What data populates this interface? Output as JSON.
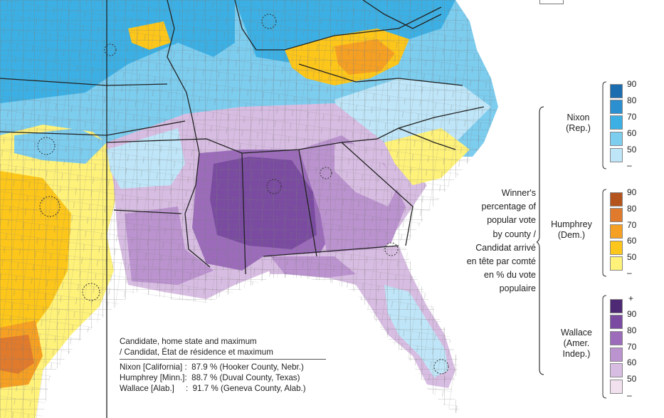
{
  "legend": {
    "winner_title": [
      "Winner's",
      "percentage of",
      "popular vote",
      "by county /",
      "Candidat arrivé",
      "en tête par comté",
      "en % du vote",
      "populaire"
    ],
    "groups": [
      {
        "name": "nixon",
        "label": [
          "Nixon",
          "(Rep.)"
        ],
        "ticks": [
          "90",
          "80",
          "70",
          "60",
          "50",
          "–"
        ],
        "colors": [
          "#1b6db0",
          "#2b8fd0",
          "#3cb0e4",
          "#7dcdef",
          "#bfe6f8"
        ]
      },
      {
        "name": "humphrey",
        "label": [
          "Humphrey",
          "(Dem.)"
        ],
        "ticks": [
          "90",
          "80",
          "70",
          "60",
          "50",
          "–"
        ],
        "colors": [
          "#b4531c",
          "#e07a2c",
          "#f5a023",
          "#fcc61b",
          "#fff27a"
        ]
      },
      {
        "name": "wallace",
        "label": [
          "Wallace",
          "(Amer.",
          "Indep.)"
        ],
        "ticks": [
          "+",
          "90",
          "80",
          "70",
          "60",
          "50",
          "–"
        ],
        "colors": [
          "#4e2a74",
          "#7a4ba0",
          "#9c6cbb",
          "#bb93cf",
          "#d8bde2",
          "#f1e1ef"
        ]
      }
    ]
  },
  "source": {
    "heading": [
      "Candidate, home state and maximum",
      "/ Candidat, État de résidence et maximum"
    ],
    "rows": [
      "Nixon [California] :  87.9 % (Hooker County, Nebr.)",
      "Humphrey [Minn.]:  88.7 % (Duval County, Texas)",
      "Wallace [Alab.]     :  91.7 % (Geneva County, Alab.)"
    ]
  },
  "map_colors": {
    "nixon_light": "#bfe6f8",
    "nixon_mid": "#7dcdef",
    "nixon_dark": "#3cb0e4",
    "humphrey_light": "#fff27a",
    "humphrey_mid": "#fcc61b",
    "humphrey_dark": "#f5a023",
    "humphrey_deep": "#e07a2c",
    "wallace_light": "#d8bde2",
    "wallace_mid": "#bb93cf",
    "wallace_dark": "#9c6cbb",
    "wallace_deep": "#7a4ba0",
    "ocean": "#ffffff",
    "border": "#222222"
  }
}
